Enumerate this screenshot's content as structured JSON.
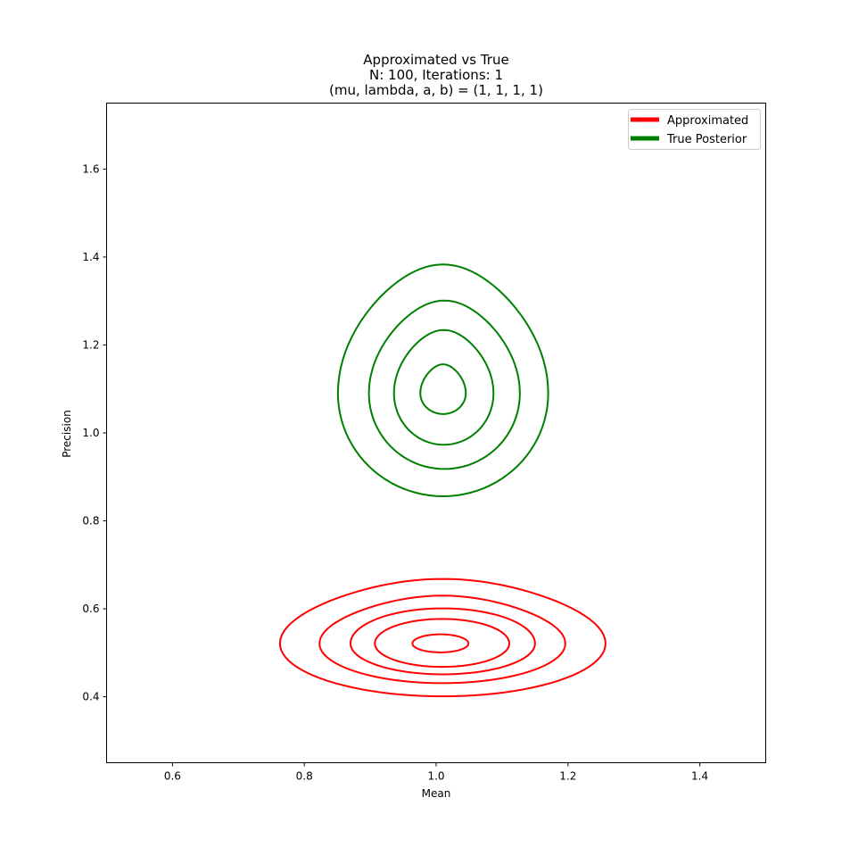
{
  "chart_data": {
    "type": "contour",
    "title_lines": [
      "Approximated vs True",
      "N: 100, Iterations: 1",
      "(mu, lambda, a, b) = (1, 1, 1, 1)"
    ],
    "xlabel": "Mean",
    "ylabel": "Precision",
    "xlim": [
      0.5,
      1.5
    ],
    "ylim": [
      0.25,
      1.75
    ],
    "xticks": [
      0.6,
      0.8,
      1.0,
      1.2,
      1.4
    ],
    "xtick_labels": [
      "0.6",
      "0.8",
      "1.0",
      "1.2",
      "1.4"
    ],
    "yticks": [
      0.4,
      0.6,
      0.8,
      1.0,
      1.2,
      1.4,
      1.6
    ],
    "ytick_labels": [
      "0.4",
      "0.6",
      "0.8",
      "1.0",
      "1.2",
      "1.4",
      "1.6"
    ],
    "grid": false,
    "legend_position": "upper right",
    "series": [
      {
        "name": "Approximated",
        "color": "#ff0000",
        "center": [
          1.007,
          0.521
        ],
        "contours": [
          {
            "x": [
              0.763,
              1.257
            ],
            "y": [
              0.401,
              0.668
            ]
          },
          {
            "x": [
              0.823,
              1.196
            ],
            "y": [
              0.431,
              0.63
            ]
          },
          {
            "x": [
              0.87,
              1.15
            ],
            "y": [
              0.451,
              0.601
            ]
          },
          {
            "x": [
              0.907,
              1.111
            ],
            "y": [
              0.468,
              0.577
            ]
          },
          {
            "x": [
              0.964,
              1.049
            ],
            "y": [
              0.501,
              0.542
            ]
          }
        ]
      },
      {
        "name": "True Posterior",
        "color": "#008000",
        "center": [
          1.007,
          1.09
        ],
        "contours": [
          {
            "x": [
              0.851,
              1.17
            ],
            "y": [
              0.856,
              1.383
            ]
          },
          {
            "x": [
              0.898,
              1.127
            ],
            "y": [
              0.918,
              1.301
            ]
          },
          {
            "x": [
              0.936,
              1.087
            ],
            "y": [
              0.973,
              1.234
            ]
          },
          {
            "x": [
              0.976,
              1.045
            ],
            "y": [
              1.043,
              1.156
            ]
          }
        ]
      }
    ]
  }
}
